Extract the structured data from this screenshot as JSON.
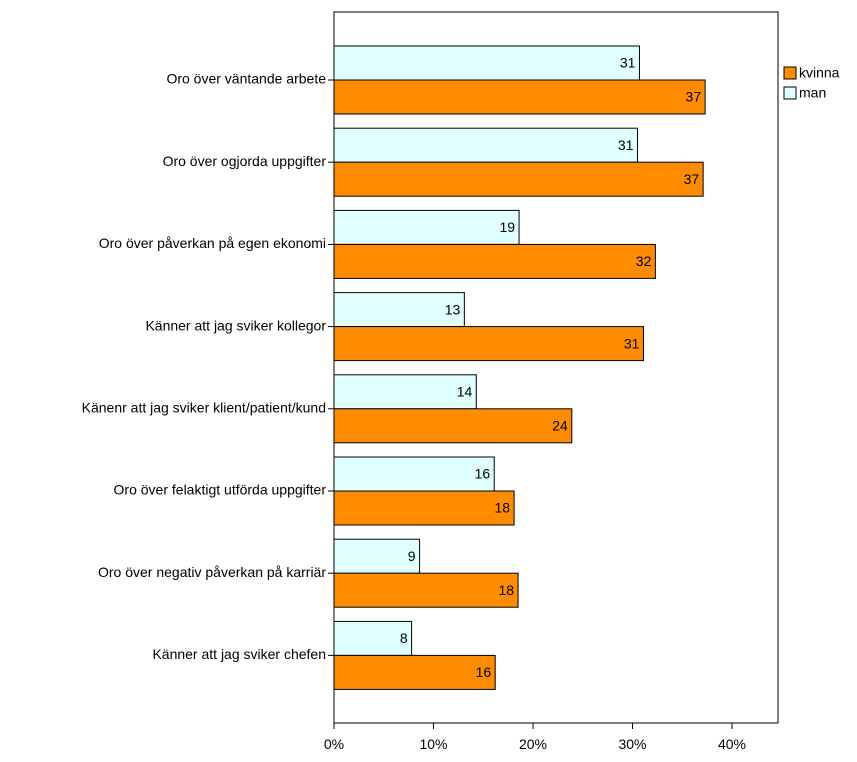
{
  "chart_data": {
    "type": "bar",
    "orientation": "horizontal",
    "categories": [
      "Oro över väntande arbete",
      "Oro över ogjorda uppgifter",
      "Oro över påverkan på egen ekonomi",
      "Känner att jag sviker kollegor",
      "Känenr att jag sviker klient/patient/kund",
      "Oro över felaktigt utförda uppgifter",
      "Oro över negativ påverkan på karriär",
      "Känner att jag sviker chefen"
    ],
    "series": [
      {
        "name": "man",
        "values": [
          30.7,
          30.5,
          18.6,
          13.1,
          14.3,
          16.1,
          8.6,
          7.8
        ],
        "labels": [
          "31",
          "31",
          "19",
          "13",
          "14",
          "16",
          "9",
          "8"
        ],
        "color": "#e0ffff"
      },
      {
        "name": "kvinna",
        "values": [
          37.3,
          37.1,
          32.3,
          31.1,
          23.9,
          18.1,
          18.5,
          16.2
        ],
        "labels": [
          "37",
          "37",
          "32",
          "31",
          "24",
          "18",
          "18",
          "16"
        ],
        "color": "#ff8c00"
      }
    ],
    "legend": {
      "position": "top-right",
      "entries": [
        "kvinna",
        "man"
      ]
    },
    "xlim": [
      0,
      45
    ],
    "xticks": [
      0,
      10,
      20,
      30,
      40
    ],
    "xtick_labels": [
      "0%",
      "10%",
      "20%",
      "30%",
      "40%"
    ],
    "title": "",
    "xlabel": "",
    "ylabel": "",
    "grid": false
  }
}
